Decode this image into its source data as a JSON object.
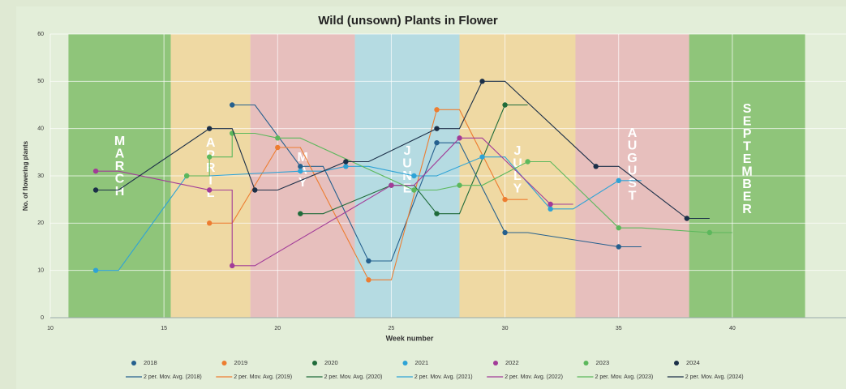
{
  "chart_data": {
    "type": "line",
    "title": "Wild (unsown) Plants in Flower",
    "x_label": "Week number",
    "y_label": "No. of flowering plants",
    "xlim": [
      10,
      45
    ],
    "xticks": [
      10,
      15,
      20,
      25,
      30,
      35,
      40
    ],
    "ylim": [
      0,
      60
    ],
    "yticks": [
      0,
      10,
      20,
      30,
      40,
      50,
      60
    ],
    "grid": true,
    "legend": "bottom",
    "months": [
      {
        "label": "MARCH",
        "start": 10.8,
        "end": 15.3,
        "color": "#8fc57a"
      },
      {
        "label": "APRIL",
        "start": 15.3,
        "end": 18.8,
        "color": "#efd9a3"
      },
      {
        "label": "MAY",
        "start": 18.8,
        "end": 23.4,
        "color": "#e7bfbd"
      },
      {
        "label": "JUNE",
        "start": 23.4,
        "end": 28.0,
        "color": "#b5dbe2"
      },
      {
        "label": "JULY",
        "start": 28.0,
        "end": 33.1,
        "color": "#efd9a3"
      },
      {
        "label": "AUGUST",
        "start": 33.1,
        "end": 38.1,
        "color": "#e7bfbd"
      },
      {
        "label": "SEPTEMBER",
        "start": 38.1,
        "end": 43.2,
        "color": "#8fc57a"
      }
    ],
    "series": [
      {
        "name": "2018",
        "trendline_name": "2 per. Mov. Avg. (2018)",
        "color": "#25608e",
        "x": [
          18,
          21,
          24,
          27,
          30,
          35
        ],
        "values": [
          45,
          32,
          12,
          37,
          18,
          15
        ]
      },
      {
        "name": "2019",
        "trendline_name": "2 per. Mov. Avg. (2019)",
        "color": "#ed7d31",
        "x": [
          17,
          20,
          24,
          27,
          30
        ],
        "values": [
          20,
          36,
          8,
          44,
          25
        ]
      },
      {
        "name": "2020",
        "trendline_name": "2 per. Mov. Avg. (2020)",
        "color": "#1f6b3a",
        "x": [
          21,
          25,
          27,
          30
        ],
        "values": [
          22,
          28,
          22,
          45
        ]
      },
      {
        "name": "2021",
        "trendline_name": "2 per. Mov. Avg. (2021)",
        "color": "#2ea3d6",
        "x": [
          12,
          16,
          21,
          23,
          26,
          29,
          32,
          35
        ],
        "values": [
          10,
          30,
          31,
          32,
          30,
          34,
          23,
          29
        ]
      },
      {
        "name": "2022",
        "trendline_name": "2 per. Mov. Avg. (2022)",
        "color": "#a23b98",
        "x": [
          12,
          17,
          18,
          25,
          28,
          32
        ],
        "values": [
          31,
          27,
          11,
          28,
          38,
          24
        ]
      },
      {
        "name": "2023",
        "trendline_name": "2 per. Mov. Avg. (2023)",
        "color": "#5cb85c",
        "x": [
          16,
          17,
          18,
          20,
          26,
          28,
          31,
          35,
          39
        ],
        "values": [
          30,
          34,
          39,
          38,
          27,
          28,
          33,
          19,
          18
        ]
      },
      {
        "name": "2024",
        "trendline_name": "2 per. Mov. Avg. (2024)",
        "color": "#1b2f48",
        "x": [
          12,
          17,
          19,
          23,
          27,
          29,
          34,
          38
        ],
        "values": [
          27,
          40,
          27,
          33,
          40,
          50,
          32,
          21
        ]
      }
    ]
  }
}
